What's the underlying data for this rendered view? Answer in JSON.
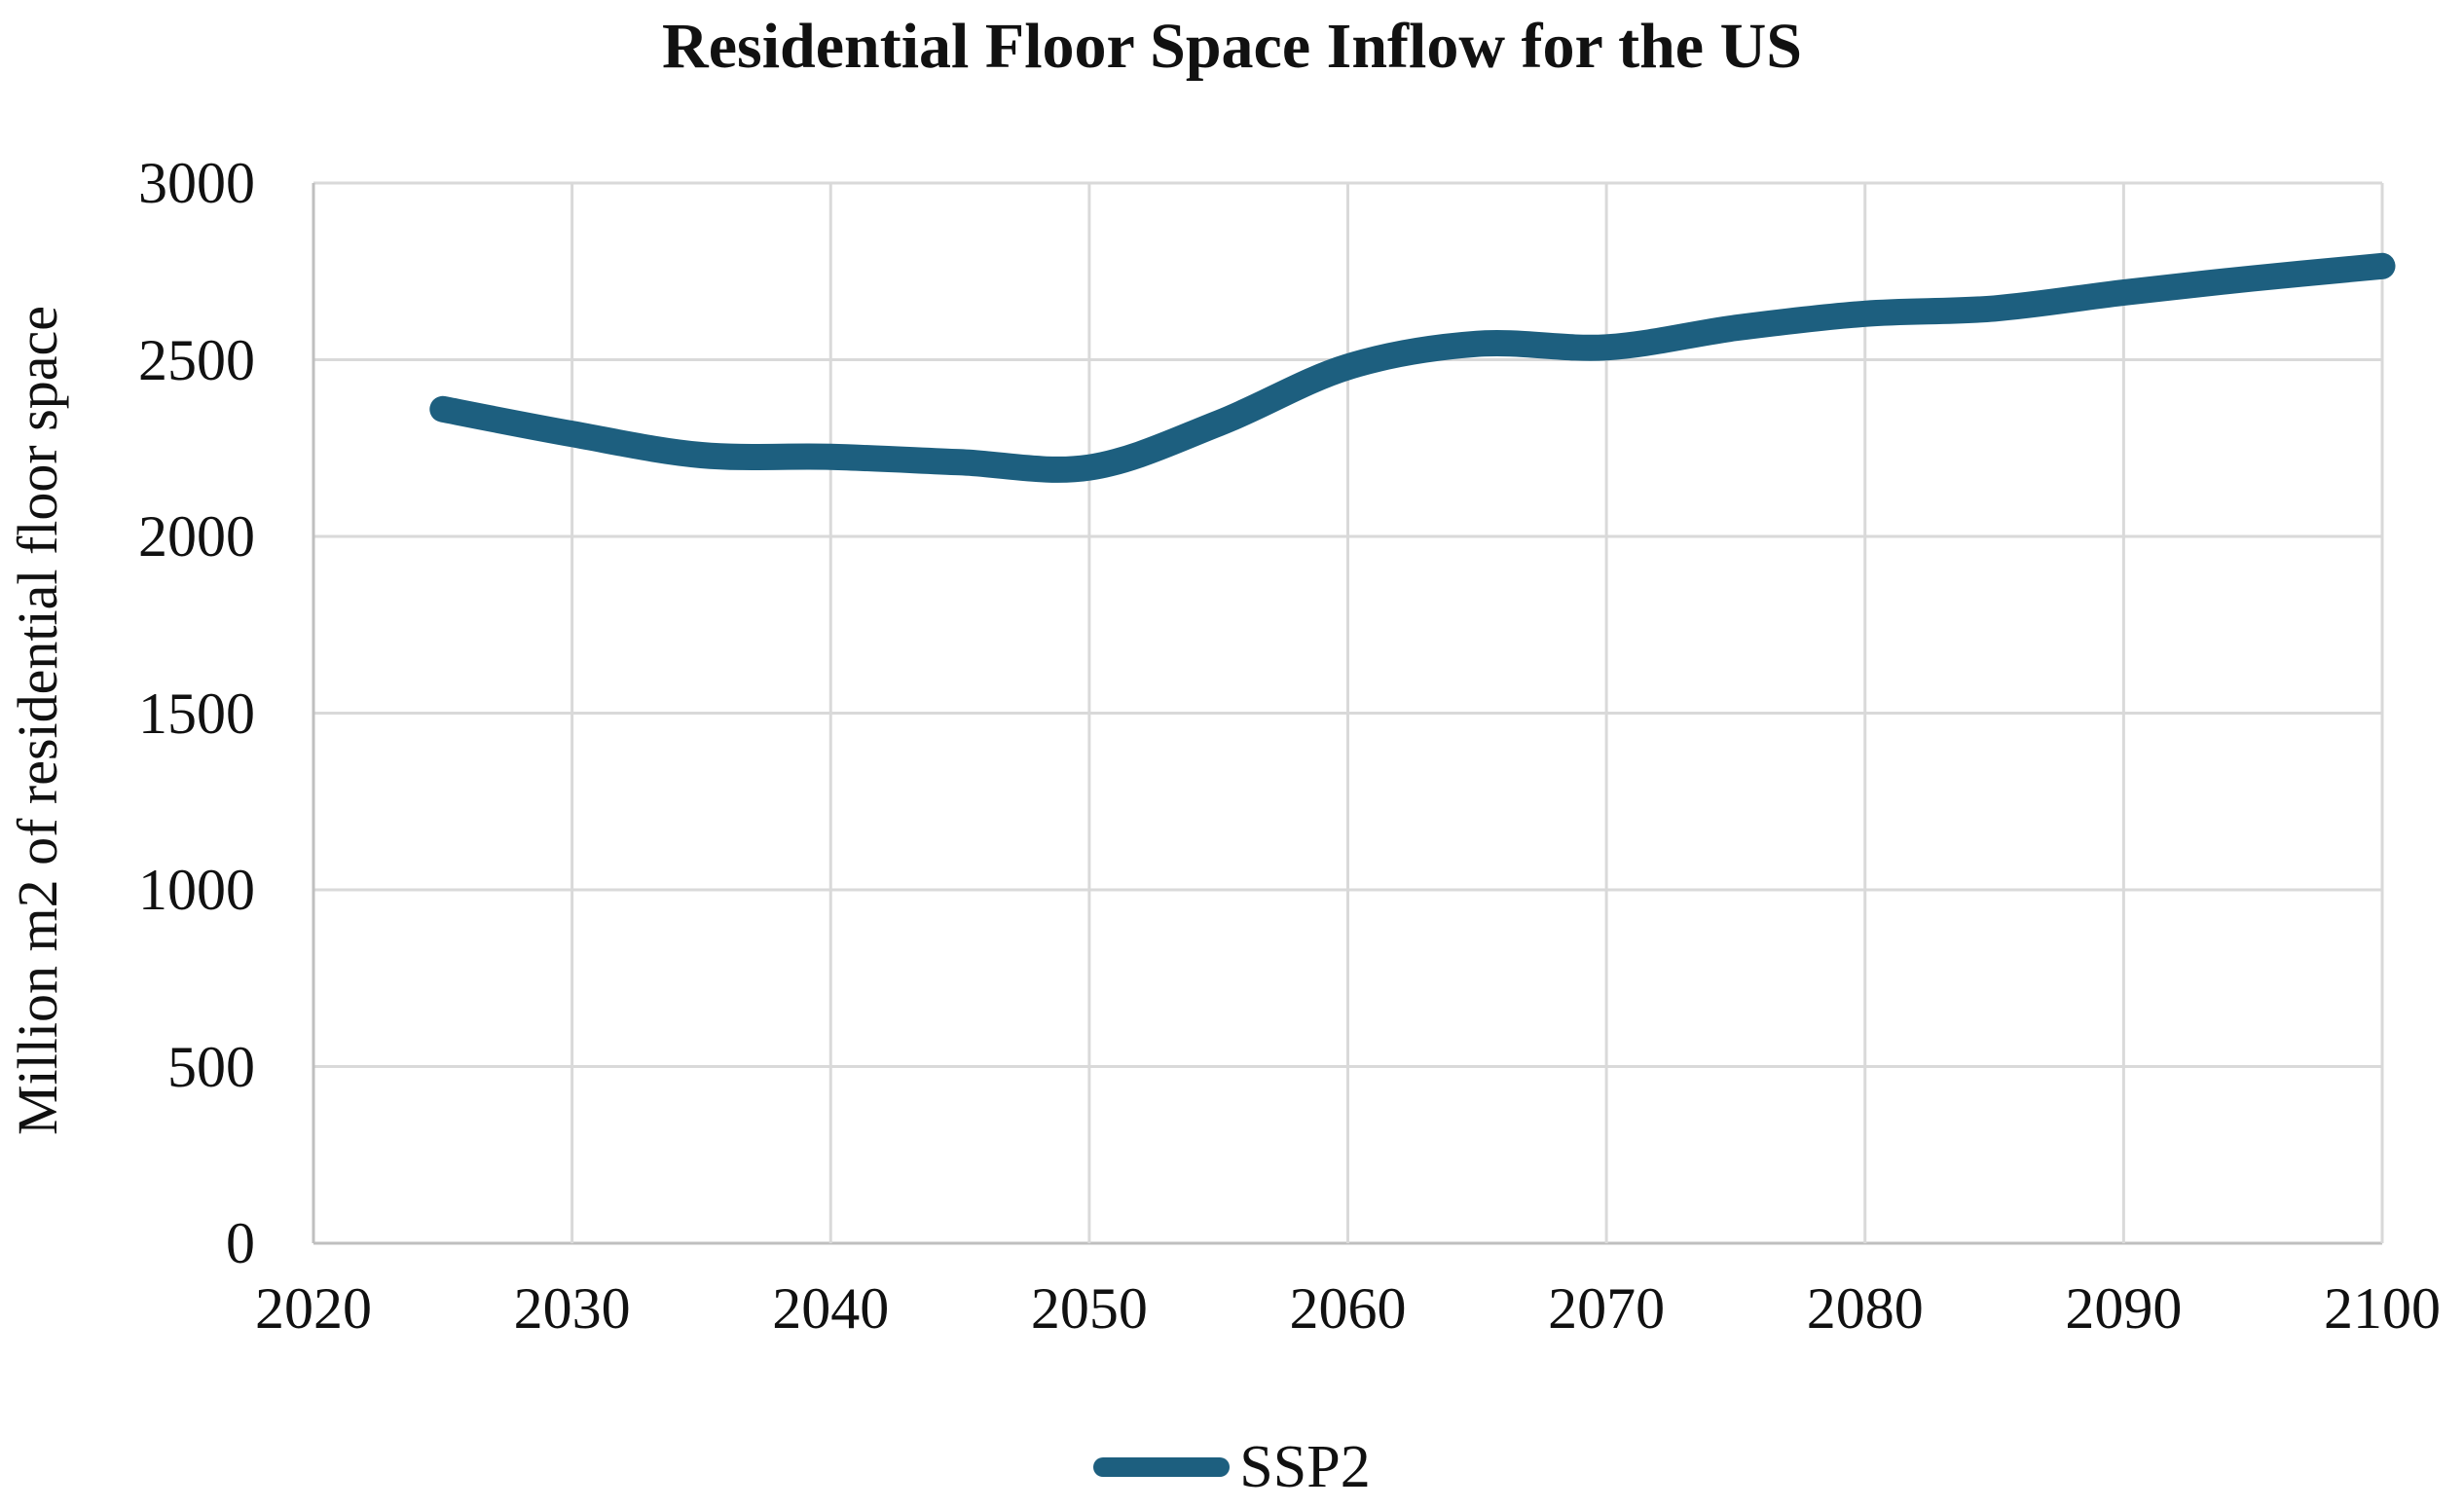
{
  "title": "Residential Floor Space Inflow for the US",
  "y_axis_label": "Million m2 of residential floor space",
  "legend": {
    "label": "SSP2"
  },
  "colors": {
    "line": "#1d5f7f",
    "gridline": "#d9d9d9",
    "axis": "#bfbfbf",
    "text": "#111111",
    "background": "#ffffff"
  },
  "chart_data": {
    "type": "line",
    "title": "Residential Floor Space Inflow for the US",
    "xlabel": "",
    "ylabel": "Million m2 of residential floor space",
    "xlim": [
      2020,
      2100
    ],
    "ylim": [
      0,
      3000
    ],
    "x_ticks": [
      2020,
      2030,
      2040,
      2050,
      2060,
      2070,
      2080,
      2090,
      2100
    ],
    "y_ticks": [
      0,
      500,
      1000,
      1500,
      2000,
      2500,
      3000
    ],
    "grid": true,
    "legend_position": "bottom",
    "line_smooth": true,
    "series": [
      {
        "name": "SSP2",
        "color": "#1d5f7f",
        "x": [
          2025,
          2030,
          2035,
          2040,
          2045,
          2050,
          2055,
          2060,
          2065,
          2070,
          2075,
          2080,
          2085,
          2090,
          2095,
          2100
        ],
        "values": [
          2360,
          2290,
          2230,
          2225,
          2210,
          2195,
          2320,
          2480,
          2545,
          2535,
          2590,
          2630,
          2645,
          2690,
          2730,
          2765
        ]
      }
    ]
  }
}
